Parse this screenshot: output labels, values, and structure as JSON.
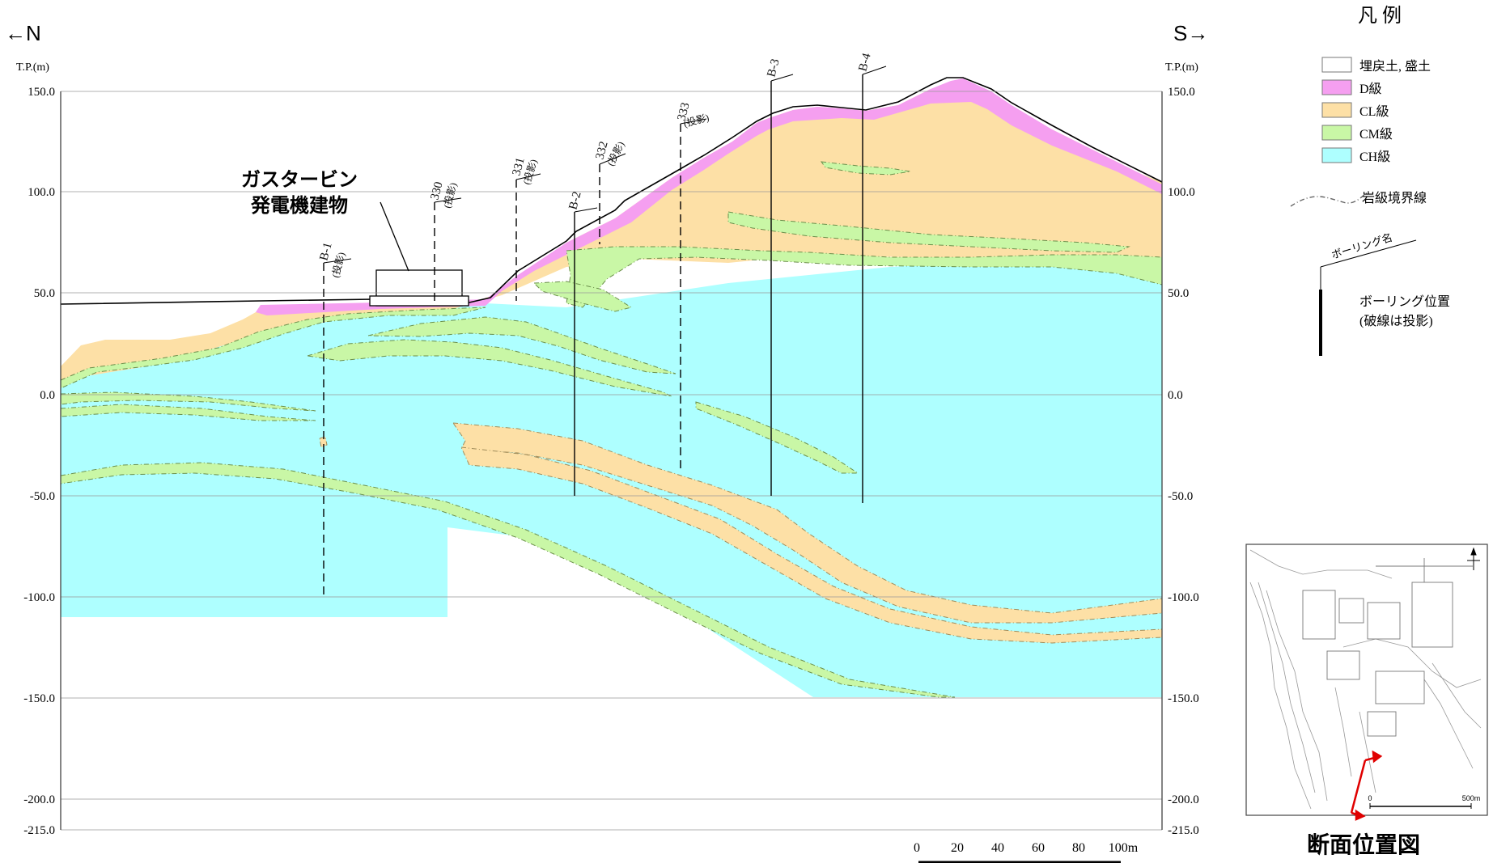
{
  "section": {
    "dir_left": "←N",
    "dir_right": "S→",
    "axis_unit": "T.P.(m)",
    "elev_ticks": [
      "150.0",
      "100.0",
      "50.0",
      "0.0",
      "-50.0",
      "-100.0",
      "-150.0",
      "-200.0",
      "-215.0"
    ],
    "building_label": [
      "ガスタービン",
      "発電機建物"
    ],
    "borings": [
      {
        "name": "B-1",
        "projected": true,
        "note": "(投影)"
      },
      {
        "name": "330",
        "projected": true,
        "note": "(投影)"
      },
      {
        "name": "331",
        "projected": true,
        "note": "(投影)"
      },
      {
        "name": "B-2",
        "projected": false,
        "note": ""
      },
      {
        "name": "332",
        "projected": true,
        "note": "(投影)"
      },
      {
        "name": "333",
        "projected": true,
        "note": "(投影)"
      },
      {
        "name": "B-3",
        "projected": false,
        "note": ""
      },
      {
        "name": "B-4",
        "projected": false,
        "note": ""
      }
    ],
    "scale_ticks": [
      "0",
      "20",
      "40",
      "60",
      "80",
      "100m"
    ]
  },
  "legend": {
    "title": "凡 例",
    "items": [
      {
        "label": "埋戻土, 盛土",
        "color": "#ffffff"
      },
      {
        "label": "D級",
        "color": "#f59ff0"
      },
      {
        "label": "CL級",
        "color": "#fde0a6"
      },
      {
        "label": "CM級",
        "color": "#c9f7a6"
      },
      {
        "label": "CH級",
        "color": "#aeffff"
      }
    ],
    "boundary_label": "岩級境界線",
    "boring_name_label": "ボーリング名",
    "boring_pos_label": [
      "ボーリング位置",
      "(破線は投影)"
    ]
  },
  "inset": {
    "title": "断面位置図",
    "scale_ticks": [
      "0",
      "500m"
    ]
  }
}
